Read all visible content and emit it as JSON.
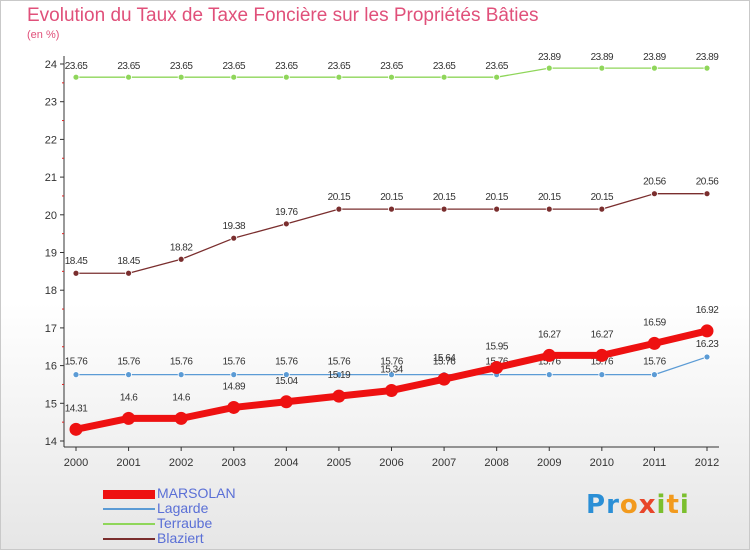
{
  "title": "Evolution du Taux de Taxe Foncière sur les Propriétés Bâties",
  "unit": "(en %)",
  "logo": {
    "letters": [
      "P",
      "r",
      "o",
      "x",
      "i",
      "t",
      "i"
    ],
    "colors": [
      "#2b8fd6",
      "#2b8fd6",
      "#f29a1d",
      "#e8452a",
      "#7bbf2e",
      "#f29a1d",
      "#7bbf2e"
    ]
  },
  "chart_data": {
    "type": "line",
    "title": "Evolution du Taux de Taxe Foncière sur les Propriétés Bâties",
    "ylabel": "(en %)",
    "xlabel": "",
    "ylim": [
      14,
      24
    ],
    "yticks": [
      "14",
      "15",
      "16",
      "17",
      "18",
      "19",
      "20",
      "21",
      "22",
      "23",
      "24"
    ],
    "x": [
      "2000",
      "2001",
      "2002",
      "2003",
      "2004",
      "2005",
      "2006",
      "2007",
      "2008",
      "2009",
      "2010",
      "2011",
      "2012"
    ],
    "grid": false,
    "legend_position": "bottom-left",
    "series": [
      {
        "name": "MARSOLAN",
        "color": "#ee1111",
        "values": [
          14.31,
          14.6,
          14.6,
          14.89,
          15.04,
          15.19,
          15.34,
          15.64,
          15.95,
          16.27,
          16.27,
          16.59,
          16.92
        ],
        "labels": [
          "14.31",
          "14.6",
          "14.6",
          "14.89",
          "15.04",
          "15.19",
          "15.34",
          "15.64",
          "15.95",
          "16.27",
          "16.27",
          "16.59",
          "16.92"
        ]
      },
      {
        "name": "Lagarde",
        "color": "#5b9bd5",
        "values": [
          15.76,
          15.76,
          15.76,
          15.76,
          15.76,
          15.76,
          15.76,
          15.76,
          15.76,
          15.76,
          15.76,
          15.76,
          16.23
        ],
        "labels": [
          "15.76",
          "15.76",
          "15.76",
          "15.76",
          "15.76",
          "15.76",
          "15.76",
          "15.76",
          "15.76",
          "15.76",
          "15.76",
          "15.76",
          "16.23"
        ]
      },
      {
        "name": "Terraube",
        "color": "#8fd65a",
        "values": [
          23.65,
          23.65,
          23.65,
          23.65,
          23.65,
          23.65,
          23.65,
          23.65,
          23.65,
          23.89,
          23.89,
          23.89,
          23.89
        ],
        "labels": [
          "23.65",
          "23.65",
          "23.65",
          "23.65",
          "23.65",
          "23.65",
          "23.65",
          "23.65",
          "23.65",
          "23.89",
          "23.89",
          "23.89",
          "23.89"
        ]
      },
      {
        "name": "Blaziert",
        "color": "#7a2e2e",
        "values": [
          18.45,
          18.45,
          18.82,
          19.38,
          19.76,
          20.15,
          20.15,
          20.15,
          20.15,
          20.15,
          20.15,
          20.56,
          20.56
        ],
        "labels": [
          "18.45",
          "18.45",
          "18.82",
          "19.38",
          "19.76",
          "20.15",
          "20.15",
          "20.15",
          "20.15",
          "20.15",
          "20.15",
          "20.56",
          "20.56"
        ]
      }
    ]
  }
}
